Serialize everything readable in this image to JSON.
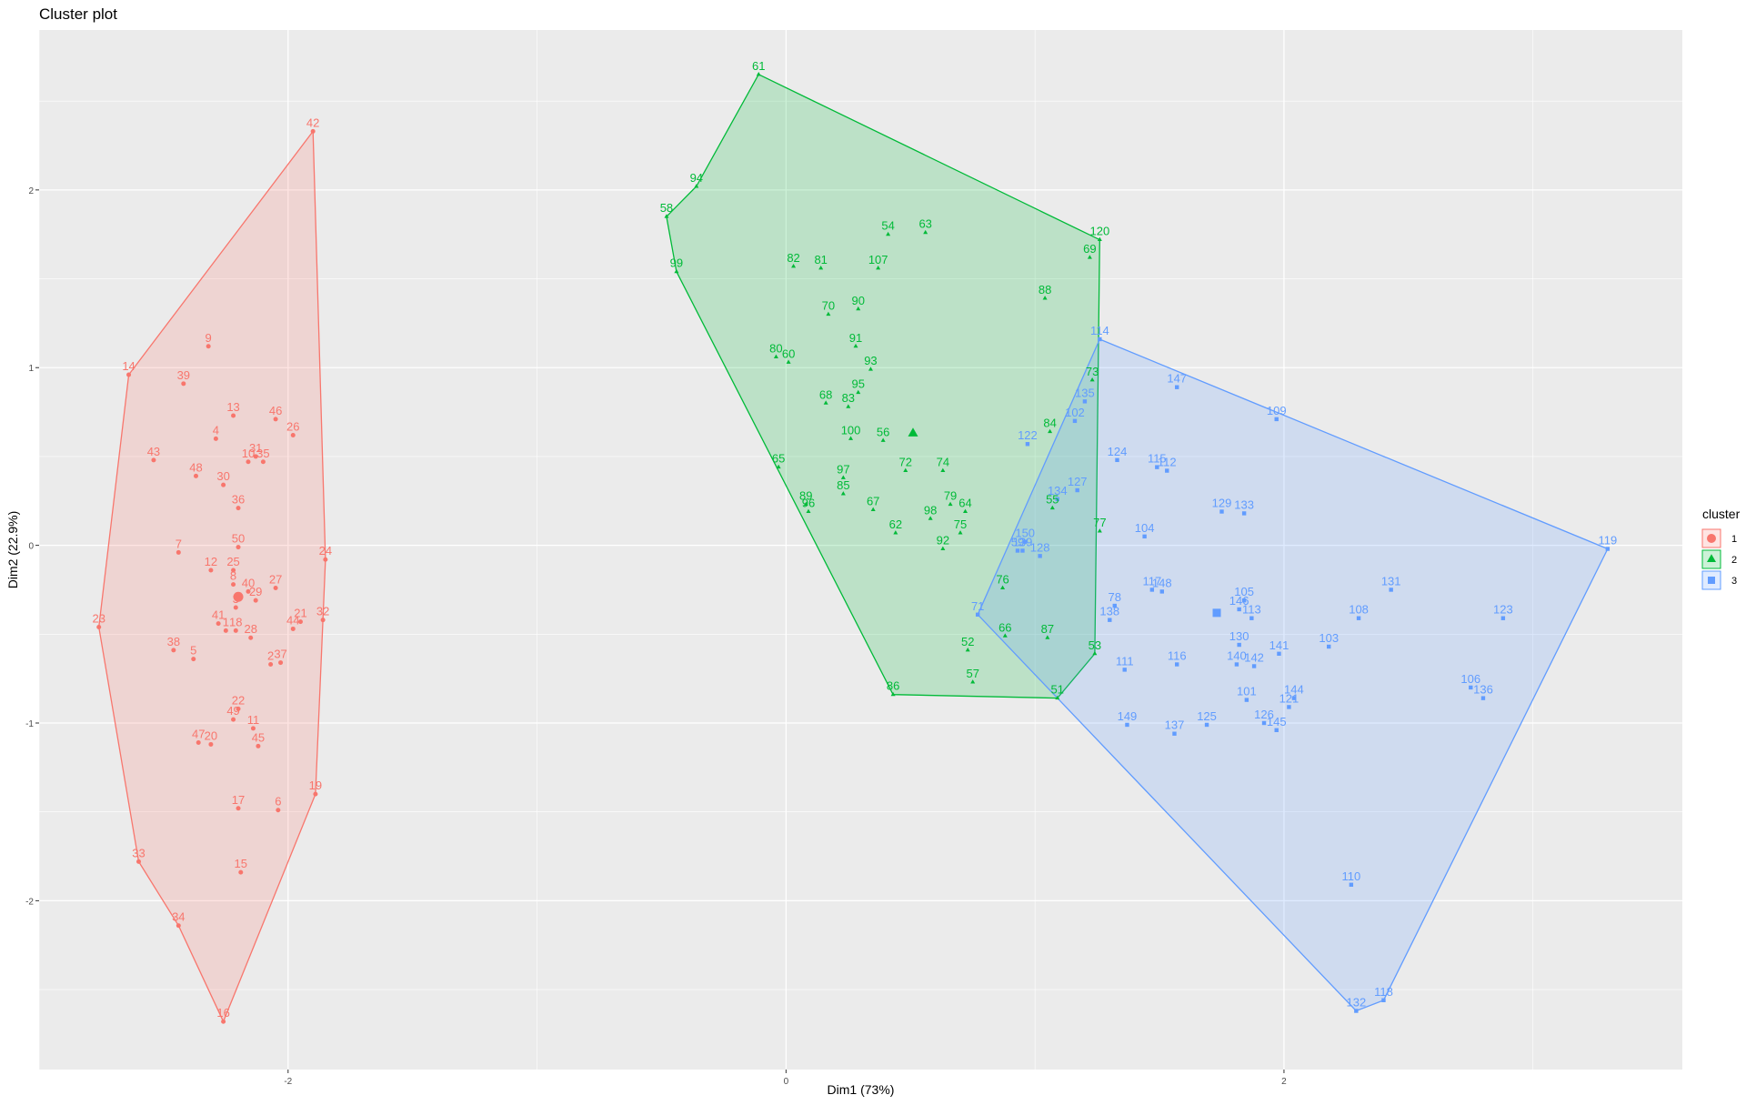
{
  "chart_data": {
    "type": "scatter",
    "title": "Cluster plot",
    "xlabel": "Dim1 (73%)",
    "ylabel": "Dim2 (22.9%)",
    "xlim": [
      -3.0,
      3.6
    ],
    "ylim": [
      -2.95,
      2.9
    ],
    "x_ticks": [
      -2,
      0,
      2
    ],
    "x_tick_labels": [
      "-2",
      "0",
      "2"
    ],
    "y_ticks": [
      -2,
      -1,
      0,
      1,
      2
    ],
    "y_tick_labels": [
      "-2",
      "-1",
      "0",
      "1",
      "2"
    ],
    "grid": true,
    "legend": {
      "title": "cluster",
      "position": "right",
      "entries": [
        "1",
        "2",
        "3"
      ]
    },
    "colors": {
      "1": "#F8766D",
      "2": "#00BA38",
      "3": "#619CFF",
      "panel": "#EBEBEB",
      "grid": "#FFFFFF"
    },
    "series": [
      {
        "name": "1",
        "marker": "circle",
        "center": [
          -2.2,
          -0.29
        ],
        "hull": [
          42,
          24,
          32,
          19,
          16,
          34,
          33,
          23,
          14
        ],
        "points": [
          {
            "label": "1",
            "x": -2.25,
            "y": -0.48
          },
          {
            "label": "2",
            "x": -2.07,
            "y": -0.67
          },
          {
            "label": "3",
            "x": -2.21,
            "y": -0.35
          },
          {
            "label": "4",
            "x": -2.29,
            "y": 0.6
          },
          {
            "label": "5",
            "x": -2.38,
            "y": -0.64
          },
          {
            "label": "6",
            "x": -2.04,
            "y": -1.49
          },
          {
            "label": "7",
            "x": -2.44,
            "y": -0.04
          },
          {
            "label": "8",
            "x": -2.22,
            "y": -0.22
          },
          {
            "label": "9",
            "x": -2.32,
            "y": 1.12
          },
          {
            "label": "10",
            "x": -2.16,
            "y": 0.47
          },
          {
            "label": "11",
            "x": -2.14,
            "y": -1.03
          },
          {
            "label": "12",
            "x": -2.31,
            "y": -0.14
          },
          {
            "label": "13",
            "x": -2.22,
            "y": 0.73
          },
          {
            "label": "14",
            "x": -2.64,
            "y": 0.96
          },
          {
            "label": "15",
            "x": -2.19,
            "y": -1.84
          },
          {
            "label": "16",
            "x": -2.26,
            "y": -2.68
          },
          {
            "label": "17",
            "x": -2.2,
            "y": -1.48
          },
          {
            "label": "18",
            "x": -2.21,
            "y": -0.48
          },
          {
            "label": "19",
            "x": -1.89,
            "y": -1.4
          },
          {
            "label": "20",
            "x": -2.31,
            "y": -1.12
          },
          {
            "label": "21",
            "x": -1.95,
            "y": -0.43
          },
          {
            "label": "22",
            "x": -2.2,
            "y": -0.92
          },
          {
            "label": "23",
            "x": -2.76,
            "y": -0.46
          },
          {
            "label": "24",
            "x": -1.85,
            "y": -0.08
          },
          {
            "label": "25",
            "x": -2.22,
            "y": -0.14
          },
          {
            "label": "26",
            "x": -1.98,
            "y": 0.62
          },
          {
            "label": "27",
            "x": -2.05,
            "y": -0.24
          },
          {
            "label": "28",
            "x": -2.15,
            "y": -0.52
          },
          {
            "label": "29",
            "x": -2.13,
            "y": -0.31
          },
          {
            "label": "30",
            "x": -2.26,
            "y": 0.34
          },
          {
            "label": "31",
            "x": -2.13,
            "y": 0.5
          },
          {
            "label": "32",
            "x": -1.86,
            "y": -0.42
          },
          {
            "label": "33",
            "x": -2.6,
            "y": -1.78
          },
          {
            "label": "34",
            "x": -2.44,
            "y": -2.14
          },
          {
            "label": "35",
            "x": -2.1,
            "y": 0.47
          },
          {
            "label": "36",
            "x": -2.2,
            "y": 0.21
          },
          {
            "label": "37",
            "x": -2.03,
            "y": -0.66
          },
          {
            "label": "38",
            "x": -2.46,
            "y": -0.59
          },
          {
            "label": "39",
            "x": -2.42,
            "y": 0.91
          },
          {
            "label": "40",
            "x": -2.16,
            "y": -0.26
          },
          {
            "label": "41",
            "x": -2.28,
            "y": -0.44
          },
          {
            "label": "42",
            "x": -1.9,
            "y": 2.33
          },
          {
            "label": "43",
            "x": -2.54,
            "y": 0.48
          },
          {
            "label": "44",
            "x": -1.98,
            "y": -0.47
          },
          {
            "label": "45",
            "x": -2.12,
            "y": -1.13
          },
          {
            "label": "46",
            "x": -2.05,
            "y": 0.71
          },
          {
            "label": "47",
            "x": -2.36,
            "y": -1.11
          },
          {
            "label": "48",
            "x": -2.37,
            "y": 0.39
          },
          {
            "label": "49",
            "x": -2.22,
            "y": -0.98
          },
          {
            "label": "50",
            "x": -2.2,
            "y": -0.01
          }
        ]
      },
      {
        "name": "2",
        "marker": "triangle",
        "center": [
          0.51,
          0.63
        ],
        "hull": [
          61,
          120,
          53,
          51,
          86,
          99,
          58,
          94
        ],
        "points": [
          {
            "label": "51",
            "x": 1.09,
            "y": -0.86
          },
          {
            "label": "52",
            "x": 0.73,
            "y": -0.59
          },
          {
            "label": "54",
            "x": 0.41,
            "y": 1.75
          },
          {
            "label": "55",
            "x": 1.07,
            "y": 0.21
          },
          {
            "label": "56",
            "x": 0.39,
            "y": 0.59
          },
          {
            "label": "57",
            "x": 0.75,
            "y": -0.77
          },
          {
            "label": "58",
            "x": -0.48,
            "y": 1.85
          },
          {
            "label": "60",
            "x": 0.01,
            "y": 1.03
          },
          {
            "label": "61",
            "x": -0.11,
            "y": 2.65
          },
          {
            "label": "62",
            "x": 0.44,
            "y": 0.07
          },
          {
            "label": "63",
            "x": 0.56,
            "y": 1.76
          },
          {
            "label": "64",
            "x": 0.72,
            "y": 0.19
          },
          {
            "label": "65",
            "x": -0.03,
            "y": 0.44
          },
          {
            "label": "66",
            "x": 0.88,
            "y": -0.51
          },
          {
            "label": "67",
            "x": 0.35,
            "y": 0.2
          },
          {
            "label": "68",
            "x": 0.16,
            "y": 0.8
          },
          {
            "label": "69",
            "x": 1.22,
            "y": 1.62
          },
          {
            "label": "70",
            "x": 0.17,
            "y": 1.3
          },
          {
            "label": "72",
            "x": 0.48,
            "y": 0.42
          },
          {
            "label": "73",
            "x": 1.23,
            "y": 0.93
          },
          {
            "label": "74",
            "x": 0.63,
            "y": 0.42
          },
          {
            "label": "75",
            "x": 0.7,
            "y": 0.07
          },
          {
            "label": "76",
            "x": 0.87,
            "y": -0.24
          },
          {
            "label": "77",
            "x": 1.26,
            "y": 0.08
          },
          {
            "label": "79",
            "x": 0.66,
            "y": 0.23
          },
          {
            "label": "80",
            "x": -0.04,
            "y": 1.06
          },
          {
            "label": "81",
            "x": 0.14,
            "y": 1.56
          },
          {
            "label": "82",
            "x": 0.03,
            "y": 1.57
          },
          {
            "label": "83",
            "x": 0.25,
            "y": 0.78
          },
          {
            "label": "84",
            "x": 1.06,
            "y": 0.64
          },
          {
            "label": "85",
            "x": 0.23,
            "y": 0.29
          },
          {
            "label": "86",
            "x": 0.43,
            "y": -0.84
          },
          {
            "label": "87",
            "x": 1.05,
            "y": -0.52
          },
          {
            "label": "88",
            "x": 1.04,
            "y": 1.39
          },
          {
            "label": "89",
            "x": 0.08,
            "y": 0.23
          },
          {
            "label": "90",
            "x": 0.29,
            "y": 1.33
          },
          {
            "label": "91",
            "x": 0.28,
            "y": 1.12
          },
          {
            "label": "92",
            "x": 0.63,
            "y": -0.02
          },
          {
            "label": "93",
            "x": 0.34,
            "y": 0.99
          },
          {
            "label": "94",
            "x": -0.36,
            "y": 2.02
          },
          {
            "label": "95",
            "x": 0.29,
            "y": 0.86
          },
          {
            "label": "96",
            "x": 0.09,
            "y": 0.19
          },
          {
            "label": "97",
            "x": 0.23,
            "y": 0.38
          },
          {
            "label": "98",
            "x": 0.58,
            "y": 0.15
          },
          {
            "label": "99",
            "x": -0.44,
            "y": 1.54
          },
          {
            "label": "100",
            "x": 0.26,
            "y": 0.6
          },
          {
            "label": "107",
            "x": 0.37,
            "y": 1.56
          },
          {
            "label": "120",
            "x": 1.26,
            "y": 1.72
          },
          {
            "label": "53",
            "x": 1.24,
            "y": -0.61
          }
        ]
      },
      {
        "name": "3",
        "marker": "square",
        "center": [
          1.73,
          -0.38
        ],
        "hull": [
          114,
          119,
          118,
          132,
          51,
          71
        ],
        "points": [
          {
            "label": "71",
            "x": 0.77,
            "y": -0.39
          },
          {
            "label": "78",
            "x": 1.32,
            "y": -0.34
          },
          {
            "label": "101",
            "x": 1.85,
            "y": -0.87
          },
          {
            "label": "102",
            "x": 1.16,
            "y": 0.7
          },
          {
            "label": "103",
            "x": 2.18,
            "y": -0.57
          },
          {
            "label": "104",
            "x": 1.44,
            "y": 0.05
          },
          {
            "label": "105",
            "x": 1.84,
            "y": -0.31
          },
          {
            "label": "106",
            "x": 2.75,
            "y": -0.8
          },
          {
            "label": "108",
            "x": 2.3,
            "y": -0.41
          },
          {
            "label": "109",
            "x": 1.97,
            "y": 0.71
          },
          {
            "label": "110",
            "x": 2.27,
            "y": -1.91
          },
          {
            "label": "111",
            "x": 1.36,
            "y": -0.7
          },
          {
            "label": "112",
            "x": 1.53,
            "y": 0.42
          },
          {
            "label": "113",
            "x": 1.87,
            "y": -0.41
          },
          {
            "label": "114",
            "x": 1.26,
            "y": 1.16
          },
          {
            "label": "115",
            "x": 1.49,
            "y": 0.44
          },
          {
            "label": "116",
            "x": 1.57,
            "y": -0.67
          },
          {
            "label": "117",
            "x": 1.47,
            "y": -0.25
          },
          {
            "label": "118",
            "x": 2.4,
            "y": -2.56
          },
          {
            "label": "119",
            "x": 3.3,
            "y": -0.02
          },
          {
            "label": "121",
            "x": 2.02,
            "y": -0.91
          },
          {
            "label": "122",
            "x": 0.97,
            "y": 0.57
          },
          {
            "label": "123",
            "x": 2.88,
            "y": -0.41
          },
          {
            "label": "124",
            "x": 1.33,
            "y": 0.48
          },
          {
            "label": "125",
            "x": 1.69,
            "y": -1.01
          },
          {
            "label": "126",
            "x": 1.92,
            "y": -1.0
          },
          {
            "label": "127",
            "x": 1.17,
            "y": 0.31
          },
          {
            "label": "128",
            "x": 1.02,
            "y": -0.06
          },
          {
            "label": "129",
            "x": 1.75,
            "y": 0.19
          },
          {
            "label": "130",
            "x": 1.82,
            "y": -0.56
          },
          {
            "label": "131",
            "x": 2.43,
            "y": -0.25
          },
          {
            "label": "132",
            "x": 2.29,
            "y": -2.62
          },
          {
            "label": "133",
            "x": 1.84,
            "y": 0.18
          },
          {
            "label": "134",
            "x": 1.09,
            "y": 0.26
          },
          {
            "label": "135",
            "x": 1.2,
            "y": 0.81
          },
          {
            "label": "136",
            "x": 2.8,
            "y": -0.86
          },
          {
            "label": "137",
            "x": 1.56,
            "y": -1.06
          },
          {
            "label": "138",
            "x": 1.3,
            "y": -0.42
          },
          {
            "label": "139",
            "x": 0.95,
            "y": -0.03
          },
          {
            "label": "140",
            "x": 1.81,
            "y": -0.67
          },
          {
            "label": "141",
            "x": 1.98,
            "y": -0.61
          },
          {
            "label": "142",
            "x": 1.88,
            "y": -0.68
          },
          {
            "label": "144",
            "x": 2.04,
            "y": -0.86
          },
          {
            "label": "145",
            "x": 1.97,
            "y": -1.04
          },
          {
            "label": "146",
            "x": 1.82,
            "y": -0.36
          },
          {
            "label": "147",
            "x": 1.57,
            "y": 0.89
          },
          {
            "label": "148",
            "x": 1.51,
            "y": -0.26
          },
          {
            "label": "149",
            "x": 1.37,
            "y": -1.01
          },
          {
            "label": "150",
            "x": 0.96,
            "y": 0.02
          },
          {
            "label": "59",
            "x": 0.93,
            "y": -0.03
          }
        ]
      }
    ]
  }
}
